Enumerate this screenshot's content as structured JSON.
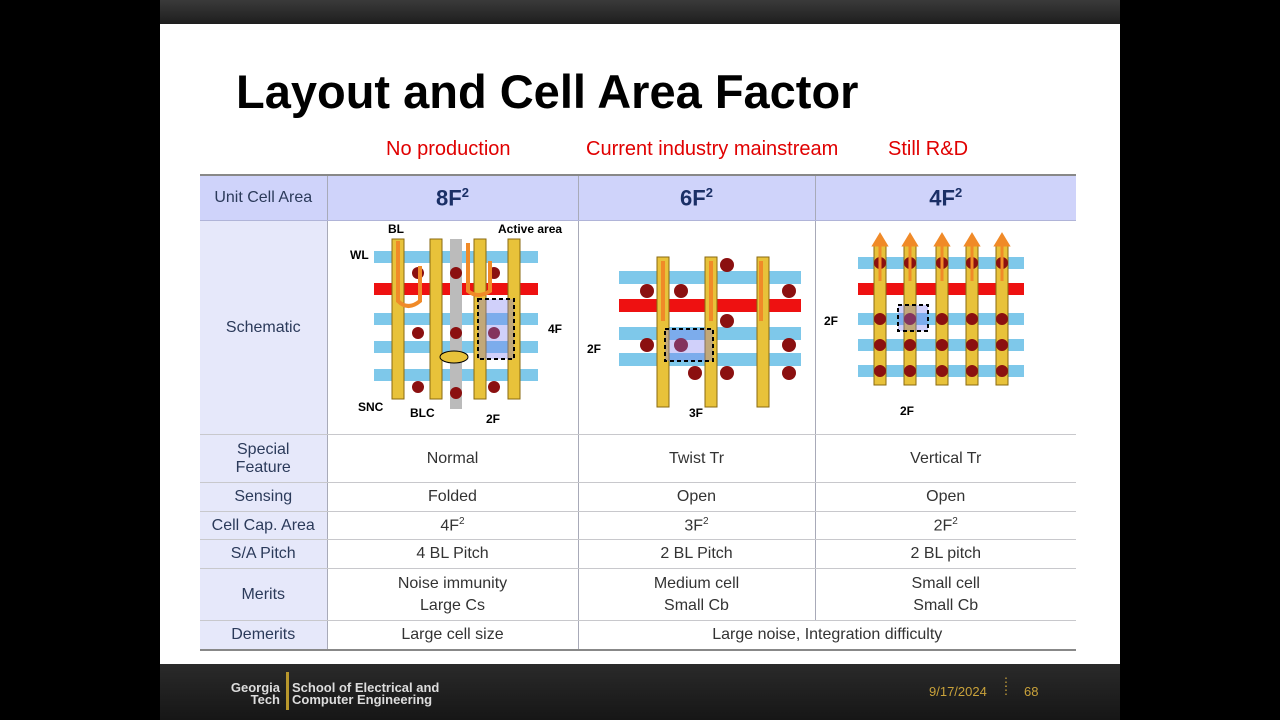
{
  "slide": {
    "title": "Layout and Cell Area Factor",
    "categories": [
      "No production",
      "Current industry mainstream",
      "Still R&D"
    ]
  },
  "table": {
    "header": {
      "label": "Unit Cell Area",
      "cols": [
        "8F",
        "6F",
        "4F"
      ],
      "exp": "2"
    },
    "schematic_label": "Schematic",
    "schematic_annotations": {
      "c8": {
        "bl": "BL",
        "wl": "WL",
        "active": "Active area",
        "snc": "SNC",
        "blc": "BLC",
        "f4": "4F",
        "f2": "2F"
      },
      "c6": {
        "f2": "2F",
        "f3": "3F"
      },
      "c4": {
        "f2a": "2F",
        "f2b": "2F"
      }
    },
    "rows": [
      {
        "label1": "Special",
        "label2": "Feature",
        "cells": [
          "Normal",
          "Twist Tr",
          "Vertical Tr"
        ]
      },
      {
        "label": "Sensing",
        "cells": [
          "Folded",
          "Open",
          "Open"
        ]
      },
      {
        "label": "Cell Cap. Area",
        "cells": [
          "4F",
          "3F",
          "2F"
        ],
        "exp": "2"
      },
      {
        "label": "S/A Pitch",
        "cells": [
          "4 BL Pitch",
          "2 BL Pitch",
          "2 BL pitch"
        ]
      },
      {
        "label": "Merits",
        "cells1": [
          "Noise immunity",
          "Medium cell",
          "Small cell"
        ],
        "cells2": [
          "Large Cs",
          "Small Cb",
          "Small Cb"
        ]
      },
      {
        "label": "Demerits",
        "cells": [
          "Large cell size",
          "Large noise, Integration difficulty"
        ]
      }
    ]
  },
  "footer": {
    "logo_line1": "Georgia",
    "logo_line2": "Tech",
    "school_line1": "School of Electrical and",
    "school_line2": "Computer Engineering",
    "date": "9/17/2024",
    "page": "68"
  },
  "colors": {
    "accent": "#e00000",
    "header_bg": "#cfd3fa",
    "rowhead_bg": "#e6e8fa",
    "wordline": "#7ec8ea",
    "wordline_red": "#ee1111",
    "bitline": "#e8c23a",
    "contact": "#8b1010",
    "arrow": "#f08a28"
  }
}
